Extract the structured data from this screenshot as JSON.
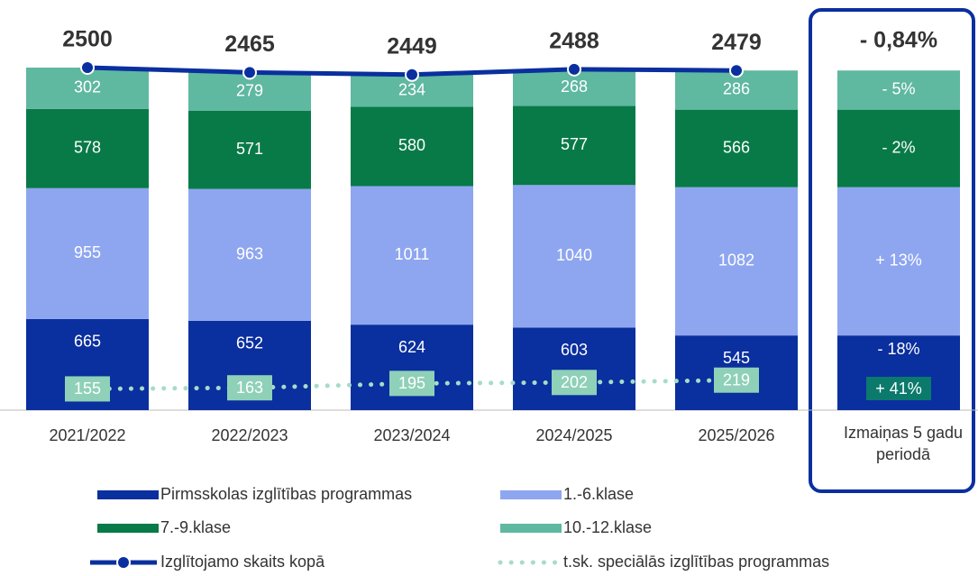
{
  "chart_data": {
    "type": "bar",
    "stacked": true,
    "categories": [
      "2021/2022",
      "2022/2023",
      "2023/2024",
      "2024/2025",
      "2025/2026"
    ],
    "ylim": [
      0,
      2500
    ],
    "series": [
      {
        "name": "Pirmsskolas izglītības programmas",
        "color": "#0a2f9e",
        "values": [
          665,
          652,
          624,
          603,
          545
        ]
      },
      {
        "name": "1.-6.klase",
        "color": "#8ea6f0",
        "values": [
          955,
          963,
          1011,
          1040,
          1082
        ]
      },
      {
        "name": "7.-9.klase",
        "color": "#087a48",
        "values": [
          578,
          571,
          580,
          577,
          566
        ]
      },
      {
        "name": "10.-12.klase",
        "color": "#5fb8a0",
        "values": [
          302,
          279,
          234,
          268,
          286
        ]
      }
    ],
    "lines": [
      {
        "name": "Izglītojamo skaits kopā",
        "color": "#0a2f9e",
        "style": "solid",
        "values": [
          2500,
          2465,
          2449,
          2488,
          2479
        ]
      },
      {
        "name": "t.sk. speciālās izglītības programmas",
        "color": "#a6dcc8",
        "style": "dotted",
        "values": [
          155,
          163,
          195,
          202,
          219
        ]
      }
    ],
    "change": {
      "label": "Izmaiņas 5 gadu periodā",
      "total": -0.84,
      "total_label": "- 0,84%",
      "values": [
        -18,
        13,
        -2,
        -5
      ],
      "value_labels": [
        "- 18%",
        "+ 13%",
        "- 2%",
        "- 5%"
      ],
      "special": 41,
      "special_label": "+ 41%"
    }
  }
}
